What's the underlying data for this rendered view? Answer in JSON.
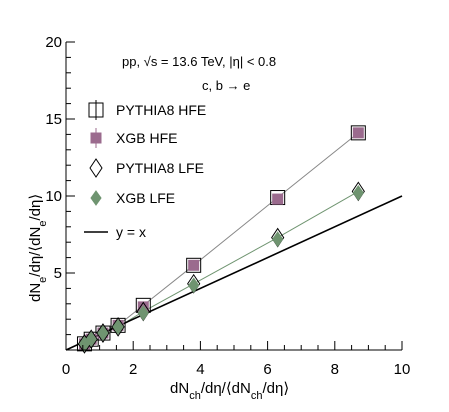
{
  "chart_data": {
    "type": "scatter",
    "title": "",
    "xlabel_main": "dN",
    "xlabel_sub1": "ch",
    "xlabel_mid": "/dη/⟨dN",
    "xlabel_sub2": "ch",
    "xlabel_tail": "/dη⟩",
    "ylabel_main": "dN",
    "ylabel_sub1": "e",
    "ylabel_mid": "/dη/⟨dN",
    "ylabel_sub2": "e",
    "ylabel_tail": "/dη⟩",
    "xlim": [
      0,
      10
    ],
    "ylim": [
      0,
      20
    ],
    "x_ticks": [
      "0",
      "2",
      "4",
      "6",
      "8",
      "10"
    ],
    "y_ticks": [
      "5",
      "10",
      "15",
      "20"
    ],
    "annotation_line1": "pp,   √s = 13.6 TeV, |η| < 0.8",
    "annotation_line2": "c, b   → e",
    "legend_position": "top-left",
    "series": [
      {
        "name": "PYTHIA8 HFE",
        "marker": "open-square",
        "color": "#000000",
        "x": [
          0.55,
          0.75,
          1.1,
          1.55,
          2.3,
          3.8,
          6.3,
          8.7
        ],
        "y": [
          0.4,
          0.7,
          1.1,
          1.6,
          2.9,
          5.5,
          9.9,
          14.1
        ]
      },
      {
        "name": "XGB HFE",
        "marker": "filled-square",
        "color": "#9b6b8e",
        "x": [
          0.55,
          0.75,
          1.1,
          1.55,
          2.3,
          3.8,
          6.3,
          8.7
        ],
        "y": [
          0.4,
          0.7,
          1.1,
          1.6,
          2.8,
          5.5,
          9.8,
          14.1
        ]
      },
      {
        "name": "PYTHIA8 LFE",
        "marker": "open-diamond",
        "color": "#000000",
        "x": [
          0.55,
          0.75,
          1.1,
          1.55,
          2.3,
          3.8,
          6.3,
          8.7
        ],
        "y": [
          0.4,
          0.7,
          1.1,
          1.5,
          2.5,
          4.3,
          7.3,
          10.3
        ]
      },
      {
        "name": "XGB LFE",
        "marker": "filled-diamond",
        "color": "#6f9470",
        "x": [
          0.55,
          0.75,
          1.1,
          1.55,
          2.3,
          3.8,
          6.3,
          8.7
        ],
        "y": [
          0.4,
          0.7,
          1.1,
          1.5,
          2.4,
          4.2,
          7.2,
          10.2
        ]
      },
      {
        "name": "y = x",
        "marker": "line",
        "color": "#000000",
        "x": [
          0,
          10
        ],
        "y": [
          0,
          10
        ]
      }
    ]
  }
}
